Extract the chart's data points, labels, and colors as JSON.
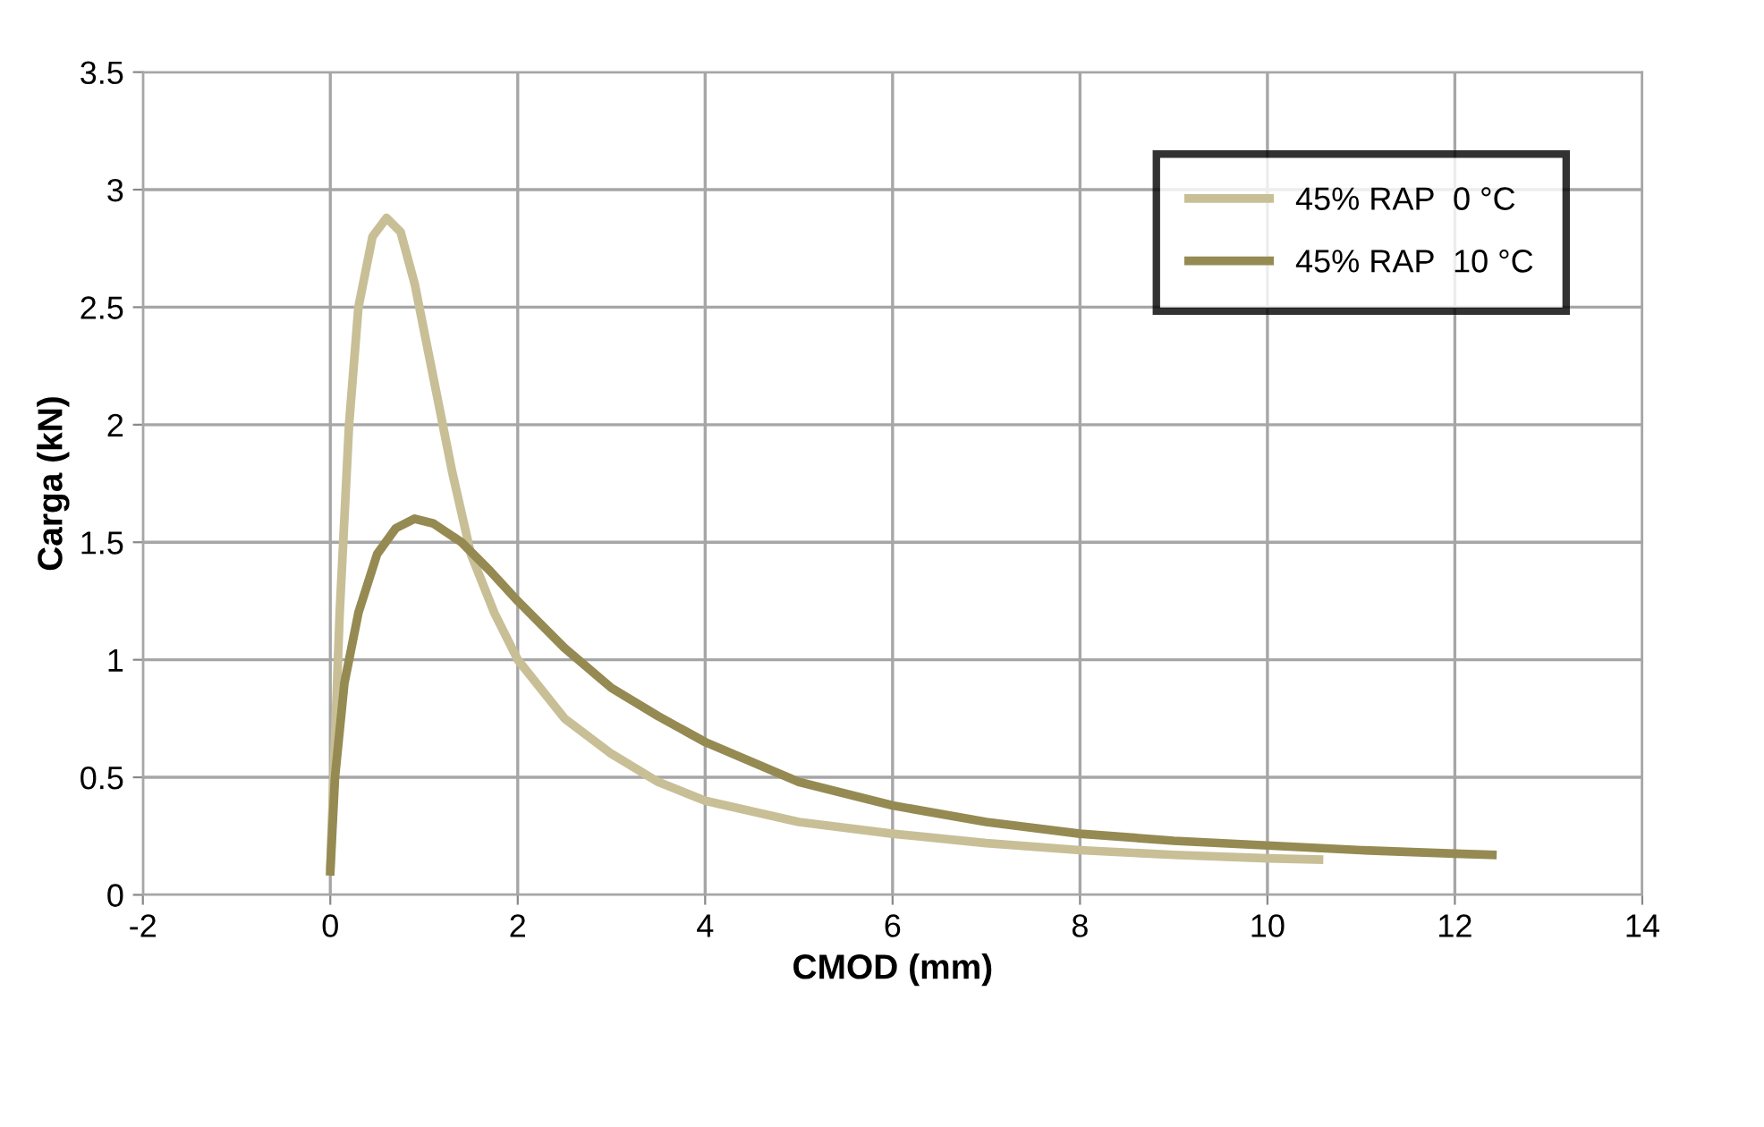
{
  "chart_data": {
    "type": "line",
    "xlabel": "CMOD (mm)",
    "ylabel": "Carga (kN)",
    "xlim": [
      -2,
      14
    ],
    "xticks": [
      -2,
      0,
      2,
      4,
      6,
      8,
      10,
      12,
      14
    ],
    "ylim": [
      0,
      3.5
    ],
    "yticks": [
      0,
      0.5,
      1,
      1.5,
      2,
      2.5,
      3,
      3.5
    ],
    "grid": true,
    "legend": "top right",
    "marker": "none",
    "line_style": "solid",
    "series": [
      {
        "name": "45% RAP  0 °C",
        "color": "#c8bf96",
        "x": [
          0,
          0.1,
          0.2,
          0.3,
          0.45,
          0.6,
          0.75,
          0.9,
          1.1,
          1.3,
          1.5,
          1.75,
          2,
          2.5,
          3,
          3.5,
          4,
          5,
          6,
          7,
          8,
          9,
          10,
          10.55
        ],
        "values": [
          0.12,
          1.2,
          2.0,
          2.5,
          2.8,
          2.88,
          2.82,
          2.6,
          2.2,
          1.8,
          1.45,
          1.2,
          1.0,
          0.75,
          0.6,
          0.48,
          0.4,
          0.31,
          0.26,
          0.22,
          0.19,
          0.17,
          0.155,
          0.15
        ]
      },
      {
        "name": "45% RAP  10 °C",
        "color": "#958a52",
        "x": [
          0,
          0.05,
          0.15,
          0.3,
          0.5,
          0.7,
          0.9,
          1.1,
          1.4,
          1.7,
          2,
          2.5,
          3,
          3.5,
          4,
          5,
          6,
          7,
          8,
          9,
          10,
          11,
          12,
          12.4
        ],
        "values": [
          0.1,
          0.5,
          0.9,
          1.2,
          1.45,
          1.56,
          1.6,
          1.58,
          1.5,
          1.38,
          1.25,
          1.05,
          0.88,
          0.76,
          0.65,
          0.48,
          0.38,
          0.31,
          0.26,
          0.23,
          0.21,
          0.19,
          0.175,
          0.17
        ]
      }
    ]
  }
}
